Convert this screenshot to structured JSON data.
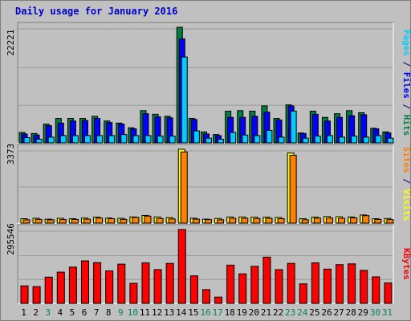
{
  "title": "Daily usage for January 2016",
  "chart_data": [
    {
      "type": "bar",
      "panel": "top",
      "ymax_label": "22221",
      "ylim": [
        0,
        22221
      ],
      "ylabel_parts": [
        {
          "text": "Pages",
          "color": "#00ccff"
        },
        {
          "text": " / ",
          "color": "#000080"
        },
        {
          "text": "Files",
          "color": "#0000ff"
        },
        {
          "text": " / ",
          "color": "#000080"
        },
        {
          "text": "Hits",
          "color": "#008040"
        }
      ],
      "categories": [
        "1",
        "2",
        "3",
        "4",
        "5",
        "6",
        "7",
        "8",
        "9",
        "10",
        "11",
        "12",
        "13",
        "14",
        "15",
        "16",
        "17",
        "18",
        "19",
        "20",
        "21",
        "22",
        "23",
        "24",
        "25",
        "26",
        "27",
        "28",
        "29",
        "30",
        "31"
      ],
      "series": [
        {
          "name": "Hits",
          "color": "#008040",
          "values": [
            2000,
            1800,
            3600,
            4700,
            4700,
            4700,
            5100,
            4200,
            3800,
            2900,
            6200,
            5500,
            5100,
            22221,
            4700,
            2100,
            1600,
            6100,
            6200,
            6100,
            7100,
            4700,
            7300,
            1900,
            6100,
            4900,
            5600,
            6200,
            5800,
            2800,
            2100
          ]
        },
        {
          "name": "Files",
          "color": "#0000ff",
          "values": [
            1700,
            1500,
            3300,
            3800,
            4200,
            4300,
            4700,
            3900,
            3600,
            2700,
            5600,
            5000,
            4800,
            20000,
            4500,
            1700,
            1400,
            4900,
            4900,
            5100,
            5900,
            4400,
            7100,
            1800,
            5500,
            4200,
            4900,
            5200,
            5400,
            2700,
            1900
          ]
        },
        {
          "name": "Pages",
          "color": "#00ccff",
          "values": [
            1000,
            700,
            1100,
            1400,
            1400,
            1400,
            1400,
            1400,
            1600,
            1400,
            1400,
            1300,
            1300,
            16500,
            2300,
            900,
            700,
            2000,
            1500,
            1400,
            2400,
            1100,
            6100,
            900,
            1300,
            1400,
            1100,
            1300,
            1100,
            1400,
            900
          ]
        }
      ]
    },
    {
      "type": "bar",
      "panel": "middle",
      "ymax_label": "3373",
      "ylim": [
        0,
        3373
      ],
      "ylabel_parts": [
        {
          "text": "Sites",
          "color": "#ff8000"
        },
        {
          "text": " / ",
          "color": "#000080"
        },
        {
          "text": "Visits",
          "color": "#ffff00"
        }
      ],
      "categories": [
        "1",
        "2",
        "3",
        "4",
        "5",
        "6",
        "7",
        "8",
        "9",
        "10",
        "11",
        "12",
        "13",
        "14",
        "15",
        "16",
        "17",
        "18",
        "19",
        "20",
        "21",
        "22",
        "23",
        "24",
        "25",
        "26",
        "27",
        "28",
        "29",
        "30",
        "31"
      ],
      "series": [
        {
          "name": "Visits",
          "color": "#ffff00",
          "values": [
            200,
            220,
            180,
            220,
            200,
            230,
            270,
            230,
            220,
            280,
            350,
            280,
            250,
            3373,
            220,
            180,
            210,
            280,
            280,
            270,
            270,
            260,
            3200,
            200,
            270,
            300,
            290,
            280,
            370,
            200,
            210
          ]
        },
        {
          "name": "Sites",
          "color": "#ff8000",
          "values": [
            150,
            170,
            150,
            160,
            170,
            180,
            230,
            200,
            170,
            260,
            320,
            210,
            190,
            3250,
            180,
            160,
            150,
            220,
            220,
            210,
            220,
            200,
            3100,
            150,
            230,
            230,
            220,
            240,
            340,
            170,
            160
          ]
        }
      ]
    },
    {
      "type": "bar",
      "panel": "bottom",
      "ymax_label": "295546",
      "ylim": [
        0,
        295546
      ],
      "ylabel_parts": [
        {
          "text": "KBytes",
          "color": "#ff0000"
        }
      ],
      "categories": [
        "1",
        "2",
        "3",
        "4",
        "5",
        "6",
        "7",
        "8",
        "9",
        "10",
        "11",
        "12",
        "13",
        "14",
        "15",
        "16",
        "17",
        "18",
        "19",
        "20",
        "21",
        "22",
        "23",
        "24",
        "25",
        "26",
        "27",
        "28",
        "29",
        "30",
        "31"
      ],
      "series": [
        {
          "name": "KBytes",
          "color": "#ff0000",
          "values": [
            70000,
            67000,
            105000,
            125000,
            145000,
            170000,
            163000,
            130000,
            157000,
            80000,
            162000,
            135000,
            160000,
            295546,
            110000,
            55000,
            25000,
            153000,
            118000,
            148000,
            185000,
            135000,
            160000,
            78000,
            162000,
            137000,
            155000,
            158000,
            132000,
            106000,
            82000
          ]
        }
      ]
    }
  ],
  "xaxis": {
    "labels": [
      "1",
      "2",
      "3",
      "4",
      "5",
      "6",
      "7",
      "8",
      "9",
      "10",
      "11",
      "12",
      "13",
      "14",
      "15",
      "16",
      "17",
      "18",
      "19",
      "20",
      "21",
      "22",
      "23",
      "24",
      "25",
      "26",
      "27",
      "28",
      "29",
      "30",
      "31"
    ],
    "weekend_days": [
      "3",
      "9",
      "10",
      "16",
      "17",
      "23",
      "24",
      "30",
      "31"
    ],
    "weekday_color": "#000000",
    "weekend_color": "#00805f"
  }
}
